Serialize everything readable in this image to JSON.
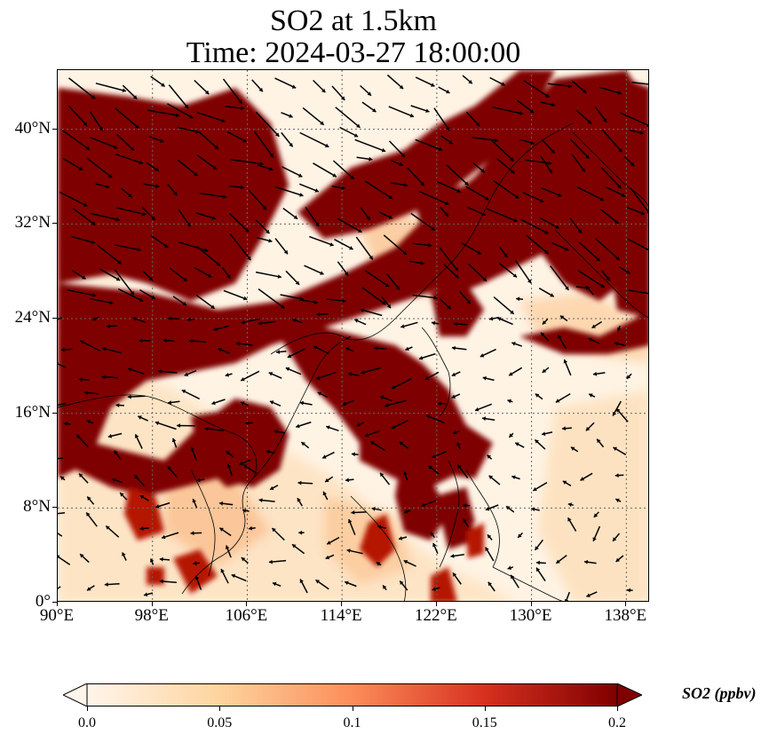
{
  "title": {
    "line1": "SO2 at 1.5km",
    "line2": "Time: 2024-03-27 18:00:00"
  },
  "map": {
    "extent": {
      "lon": [
        90,
        140
      ],
      "lat": [
        0,
        45
      ]
    },
    "lat_ticks": [
      "0°",
      "8°N",
      "16°N",
      "24°N",
      "32°N",
      "40°N"
    ],
    "lon_ticks": [
      "90°E",
      "98°E",
      "106°E",
      "114°E",
      "122°E",
      "130°E",
      "138°E"
    ],
    "gridlines": "dotted"
  },
  "colorbar": {
    "label": "SO2 (ppbv)",
    "ticks": [
      "0.0",
      "0.05",
      "0.1",
      "0.15",
      "0.2"
    ],
    "colormap": [
      "#fff5eb",
      "#fdd49e",
      "#fc8d59",
      "#d7301f",
      "#7f0000"
    ],
    "extend": "both"
  },
  "colors": {
    "high": "#7f0000",
    "mid": "#d7301f",
    "low": "#fdd49e",
    "background": "#fff5eb"
  }
}
